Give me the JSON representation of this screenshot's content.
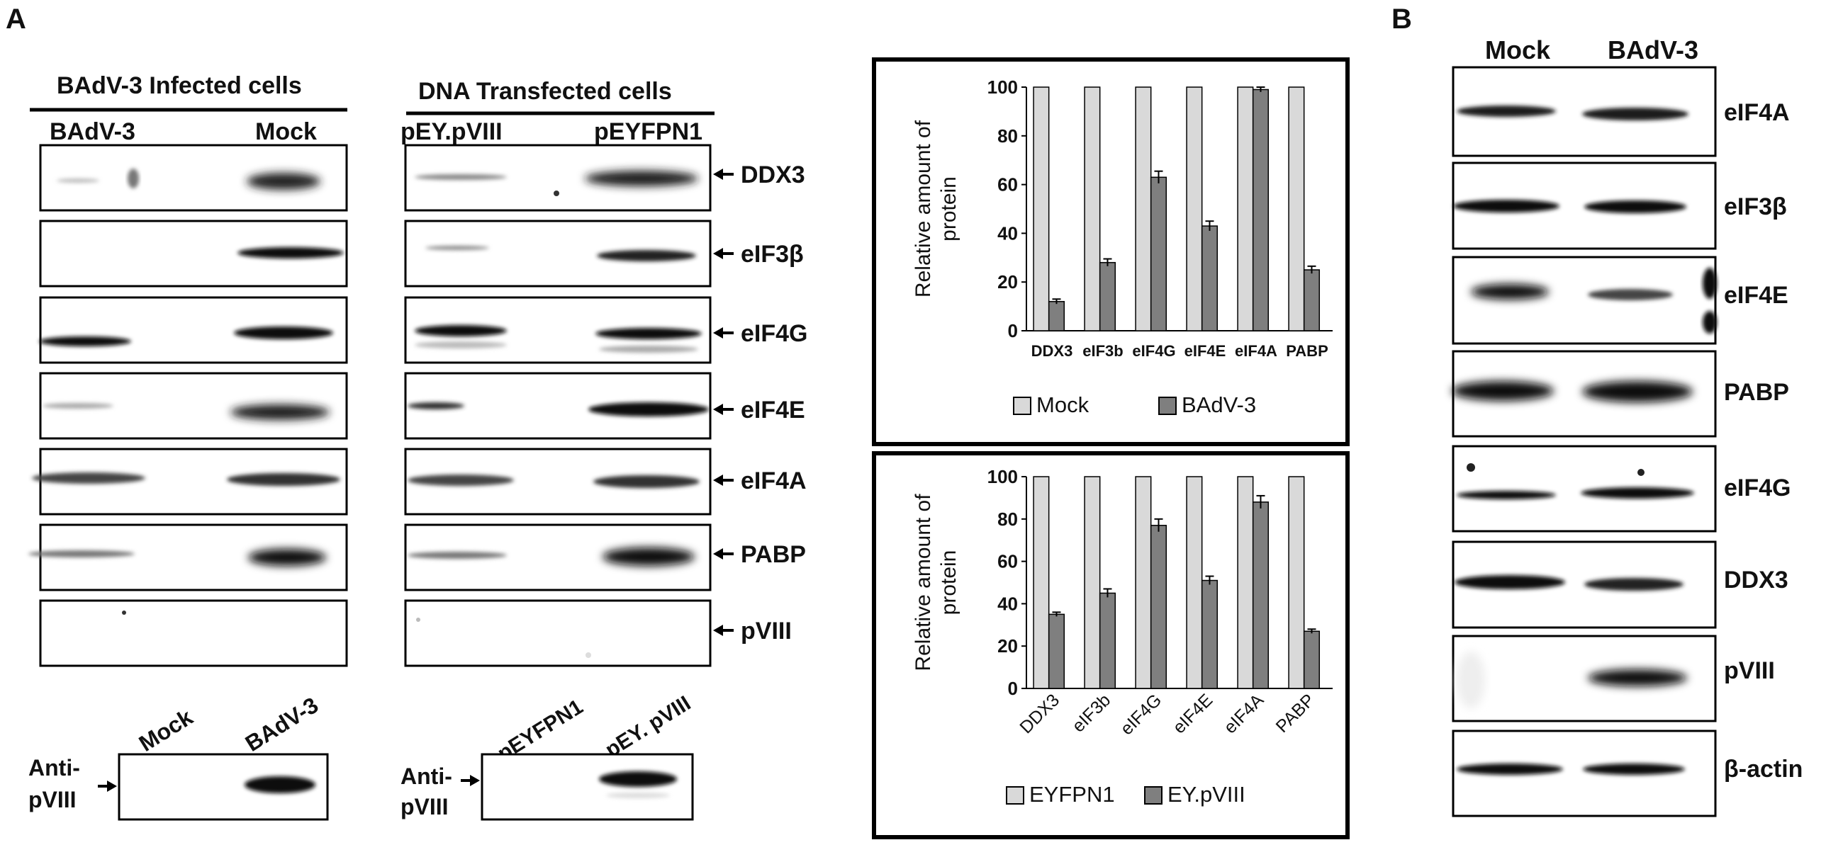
{
  "panel_labels": {
    "a": "A",
    "b": "B"
  },
  "infected": {
    "header": "BAdV-3 Infected cells",
    "lane_left": "BAdV-3",
    "lane_right": "Mock",
    "bottom_lane_left": "Mock",
    "bottom_lane_right": "BAdV-3",
    "bottom_label_line1": "Anti-",
    "bottom_label_line2": "pVIII"
  },
  "transfected": {
    "header": "DNA  Transfected cells",
    "lane_left": "pEY.pVIII",
    "lane_right": "pEYFPN1",
    "bottom_lane_left": "pEYFPN1",
    "bottom_lane_right": "pEY. pVIII",
    "bottom_label_line1": "Anti-",
    "bottom_label_line2": "pVIII"
  },
  "blot_labels_a": [
    "DDX3",
    "eIF3β",
    "eIF4G",
    "eIF4E",
    "eIF4A",
    "PABP",
    "pVIII"
  ],
  "panel_b": {
    "lane_left": "Mock",
    "lane_right": "BAdV-3",
    "labels": [
      "eIF4A",
      "eIF3β",
      "eIF4E",
      "PABP",
      "eIF4G",
      "DDX3",
      "pVIII",
      "β-actin"
    ]
  },
  "chart_data": [
    {
      "type": "bar",
      "categories": [
        "DDX3",
        "eIF3b",
        "eIF4G",
        "eIF4E",
        "eIF4A",
        "PABP"
      ],
      "series": [
        {
          "name": "Mock",
          "values": [
            100,
            100,
            100,
            100,
            100,
            100
          ],
          "errors": [
            0,
            0,
            0,
            0,
            0,
            0
          ],
          "color": "#d9d9d9"
        },
        {
          "name": "BAdV-3",
          "values": [
            12,
            28,
            63,
            43,
            99,
            25
          ],
          "errors": [
            1,
            1.5,
            2.5,
            2,
            1,
            1.5
          ],
          "color": "#7f7f7f"
        }
      ],
      "ylabel": "Relative amount of protein",
      "ylabel_line1": "Relative amount of",
      "ylabel_line2": "protein",
      "ylim": [
        0,
        100
      ],
      "yticks": [
        "0",
        "20",
        "40",
        "60",
        "80",
        "100"
      ],
      "legend_placement": "bottom"
    },
    {
      "type": "bar",
      "categories": [
        "DDX3",
        "eIF3b",
        "eIF4G",
        "eIF4E",
        "eIF4A",
        "PABP"
      ],
      "series": [
        {
          "name": "EYFPN1",
          "values": [
            100,
            100,
            100,
            100,
            100,
            100
          ],
          "errors": [
            0,
            0,
            0,
            0,
            0,
            0
          ],
          "color": "#d9d9d9"
        },
        {
          "name": "EY.pVIII",
          "values": [
            35,
            45,
            77,
            51,
            88,
            27
          ],
          "errors": [
            1,
            2,
            3,
            2,
            3,
            1
          ],
          "color": "#7f7f7f"
        }
      ],
      "ylabel": "Relative amount of protein",
      "ylabel_line1": "Relative amount of",
      "ylabel_line2": "protein",
      "ylim": [
        0,
        100
      ],
      "yticks": [
        "0",
        "20",
        "40",
        "60",
        "80",
        "100"
      ],
      "legend_placement": "bottom"
    }
  ]
}
